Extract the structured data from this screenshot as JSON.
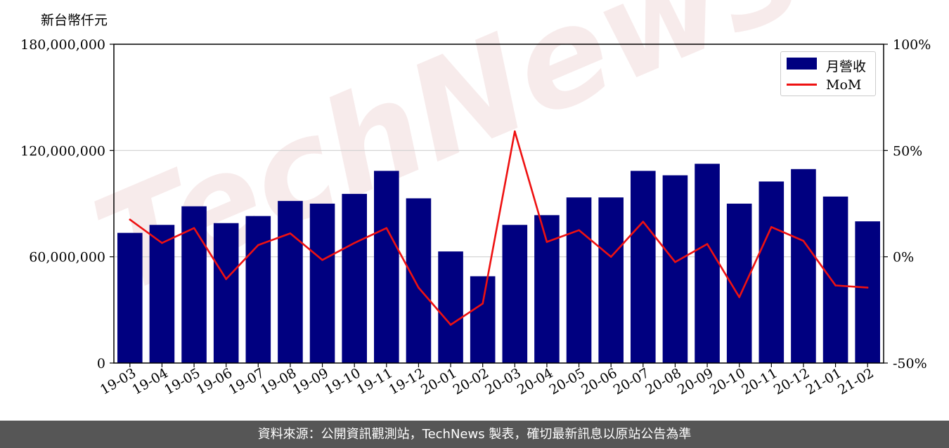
{
  "unit_label": "新台幣仟元",
  "watermark": "TechNews",
  "legend": {
    "bar_label": "月營收",
    "line_label": "MoM"
  },
  "footer": "資料來源：公開資訊觀測站，TechNews 製表，確切最新訊息以原站公告為準",
  "colors": {
    "bar": "#000080",
    "line": "#ee1111",
    "grid": "#d0d0d0",
    "footer_bg": "#565656"
  },
  "chart_data": {
    "type": "bar",
    "categories": [
      "19-03",
      "19-04",
      "19-05",
      "19-06",
      "19-07",
      "19-08",
      "19-09",
      "19-10",
      "19-11",
      "19-12",
      "20-01",
      "20-02",
      "20-03",
      "20-04",
      "20-05",
      "20-06",
      "20-07",
      "20-08",
      "20-09",
      "20-10",
      "20-11",
      "20-12",
      "21-01",
      "21-02"
    ],
    "series": [
      {
        "name": "月營收",
        "axis": "left",
        "type": "bar",
        "values": [
          73500000,
          78000000,
          88500000,
          79000000,
          83000000,
          91500000,
          90000000,
          95500000,
          108500000,
          93000000,
          63000000,
          49000000,
          78000000,
          83500000,
          93500000,
          93500000,
          108500000,
          106000000,
          112500000,
          90000000,
          102500000,
          109500000,
          94000000,
          80000000
        ]
      },
      {
        "name": "MoM",
        "axis": "right",
        "type": "line",
        "values": [
          17.5,
          6.5,
          13.5,
          -10.5,
          5.5,
          11,
          -1.5,
          6.5,
          13.5,
          -14.5,
          -32,
          -22,
          59,
          7,
          12.5,
          0,
          16.5,
          -2.5,
          6,
          -19,
          14,
          7.5,
          -13.5,
          -14.5
        ]
      }
    ],
    "y_left": {
      "min": 0,
      "max": 180000000,
      "ticks": [
        0,
        60000000,
        120000000,
        180000000
      ],
      "tick_labels": [
        "0",
        "60,000,000",
        "120,000,000",
        "180,000,000"
      ]
    },
    "y_right": {
      "min": -50,
      "max": 100,
      "ticks": [
        -50,
        0,
        50,
        100
      ],
      "tick_labels": [
        "-50%",
        "0%",
        "50%",
        "100%"
      ]
    },
    "grid": "horizontal",
    "legend_position": "top-right"
  }
}
